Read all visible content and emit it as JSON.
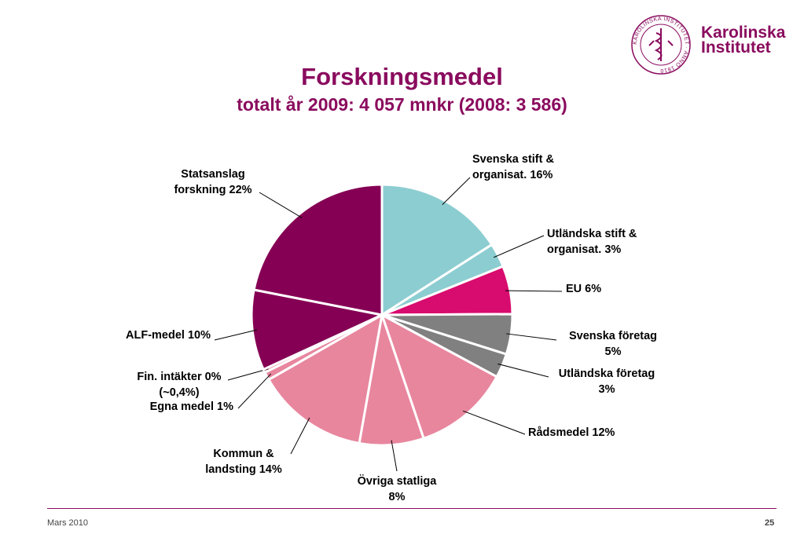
{
  "header": {
    "title": "Forskningsmedel",
    "subtitle": "totalt år 2009: 4 057 mnkr (2008: 3 586)"
  },
  "logo": {
    "line1": "Karolinska",
    "line2": "Institutet",
    "seal_text": "KAROLINSKA INSTITUTET · ANNO 1810",
    "color": "#8a0b5e"
  },
  "chart_data": {
    "type": "pie",
    "title": "",
    "slices": [
      {
        "label": [
          "Svenska stift &",
          "organisat. 16%"
        ],
        "value": 16,
        "color": "#8ccdd1"
      },
      {
        "label": [
          "Utländska stift &",
          "organisat. 3%"
        ],
        "value": 3,
        "color": "#8ccdd1"
      },
      {
        "label": [
          "EU 6%"
        ],
        "value": 6,
        "color": "#d80b6e"
      },
      {
        "label": [
          "Svenska företag",
          "5%"
        ],
        "value": 5,
        "color": "#808080"
      },
      {
        "label": [
          "Utländska företag",
          "3%"
        ],
        "value": 3,
        "color": "#808080"
      },
      {
        "label": [
          "Rådsmedel 12%"
        ],
        "value": 12,
        "color": "#e8869e"
      },
      {
        "label": [
          "Övriga statliga",
          "8%"
        ],
        "value": 8,
        "color": "#e8869e"
      },
      {
        "label": [
          "Kommun &",
          "landsting 14%"
        ],
        "value": 14,
        "color": "#e8869e"
      },
      {
        "label": [
          "Egna medel 1%"
        ],
        "value": 1,
        "color": "#e8869e"
      },
      {
        "label": [
          "Fin. intäkter 0%",
          "(~0,4%)"
        ],
        "value": 0.4,
        "color": "#e8869e"
      },
      {
        "label": [
          "ALF-medel 10%"
        ],
        "value": 10,
        "color": "#850054"
      },
      {
        "label": [
          "Statsanslag",
          "forskning 22%"
        ],
        "value": 22,
        "color": "#850054"
      }
    ]
  },
  "footer": {
    "date": "Mars 2010",
    "page": "25"
  }
}
